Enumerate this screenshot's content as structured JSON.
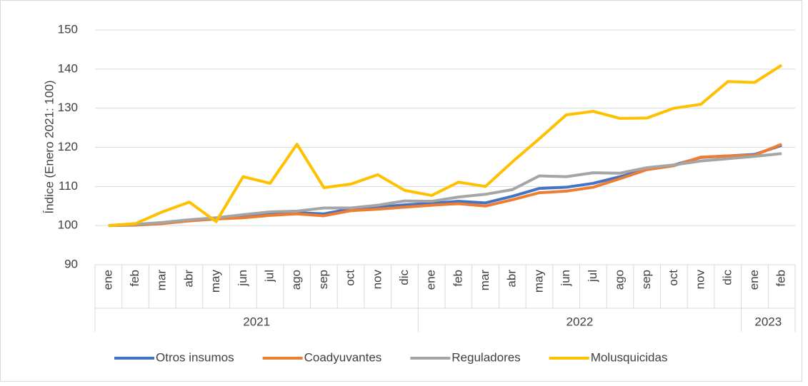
{
  "chart_data": {
    "type": "line",
    "y_label": "Índice (Enero 2021: 100)",
    "groups": [
      {
        "name": "2021",
        "categories": [
          "ene",
          "feb",
          "mar",
          "abr",
          "may",
          "jun",
          "jul",
          "ago",
          "sep",
          "oct",
          "nov",
          "dic"
        ]
      },
      {
        "name": "2022",
        "categories": [
          "ene",
          "feb",
          "mar",
          "abr",
          "may",
          "jun",
          "jul",
          "ago",
          "sep",
          "oct",
          "nov",
          "dic"
        ]
      },
      {
        "name": "2023",
        "categories": [
          "ene",
          "feb"
        ]
      }
    ],
    "ylim": [
      90,
      150
    ],
    "yticks": [
      90,
      100,
      110,
      120,
      130,
      140,
      150
    ],
    "grid": true,
    "legend": "bottom",
    "series": [
      {
        "name": "Otros insumos",
        "color": "#4472c4",
        "values": [
          100,
          100.2,
          100.6,
          101.3,
          101.8,
          102.3,
          103,
          103.3,
          103,
          104.3,
          104.7,
          105.3,
          105.7,
          106.2,
          105.8,
          107.5,
          109.5,
          109.8,
          110.8,
          112.5,
          114.5,
          115.5,
          117.4,
          117.8,
          118.2,
          120.5
        ]
      },
      {
        "name": "Coadyuvantes",
        "color": "#ed7d31",
        "values": [
          100,
          100.1,
          100.5,
          101.2,
          101.7,
          102,
          102.6,
          103,
          102.5,
          103.8,
          104.2,
          104.7,
          105.2,
          105.6,
          105,
          106.6,
          108.4,
          108.8,
          109.8,
          112,
          114.3,
          115.3,
          117.5,
          117.8,
          118,
          120.8
        ]
      },
      {
        "name": "Reguladores",
        "color": "#a5a5a5",
        "values": [
          100,
          100.3,
          100.8,
          101.5,
          102,
          102.8,
          103.5,
          103.7,
          104.5,
          104.5,
          105.2,
          106.3,
          106.2,
          107.3,
          108,
          109.2,
          112.7,
          112.5,
          113.5,
          113.4,
          114.8,
          115.5,
          116.5,
          117.1,
          117.7,
          118.4
        ]
      },
      {
        "name": "Molusquicidas",
        "color": "#ffc000",
        "values": [
          100,
          100.5,
          103.5,
          106,
          101,
          112.5,
          110.8,
          120.8,
          109.7,
          110.6,
          113,
          109,
          107.7,
          111.1,
          110,
          116.3,
          122.2,
          128.3,
          129.2,
          127.4,
          127.5,
          130,
          131,
          136.8,
          136.6,
          141
        ]
      }
    ]
  }
}
